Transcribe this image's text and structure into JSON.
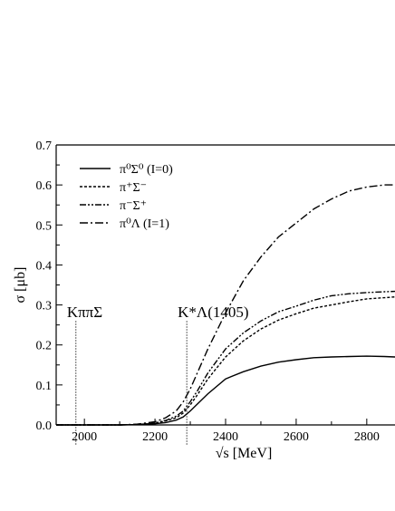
{
  "chart_data": {
    "type": "line",
    "xlabel": "√s [MeV]",
    "ylabel": "σ [μb]",
    "xlim": [
      1920,
      2880
    ],
    "ylim": [
      0.0,
      0.7
    ],
    "xticks": [
      2000,
      2200,
      2400,
      2600,
      2800
    ],
    "yticks": [
      0.0,
      0.1,
      0.2,
      0.3,
      0.4,
      0.5,
      0.6,
      0.7
    ],
    "xtick_labels": [
      "2000",
      "2200",
      "2400",
      "2600",
      "2800"
    ],
    "ytick_labels": [
      "0.0",
      "0.1",
      "0.2",
      "0.3",
      "0.4",
      "0.5",
      "0.6",
      "0.7"
    ],
    "grid": false,
    "legend_position": "top-left",
    "annotations": [
      {
        "text": "KππΣ",
        "x": 1976
      },
      {
        "text": "K*Λ(1405)",
        "x": 2290
      }
    ],
    "series": [
      {
        "name": "π⁰Σ⁰ (I=0)",
        "dash": "solid",
        "x": [
          1920,
          2000,
          2100,
          2150,
          2200,
          2230,
          2260,
          2280,
          2300,
          2320,
          2350,
          2400,
          2450,
          2500,
          2550,
          2600,
          2650,
          2700,
          2750,
          2800,
          2850,
          2880
        ],
        "y": [
          0.0,
          0.0,
          0.0,
          0.001,
          0.003,
          0.006,
          0.012,
          0.02,
          0.035,
          0.052,
          0.078,
          0.115,
          0.133,
          0.147,
          0.157,
          0.163,
          0.168,
          0.17,
          0.171,
          0.172,
          0.171,
          0.17
        ]
      },
      {
        "name": "π⁺Σ⁻",
        "dash": "dotted",
        "x": [
          1920,
          2000,
          2100,
          2150,
          2200,
          2230,
          2260,
          2280,
          2300,
          2320,
          2350,
          2400,
          2450,
          2500,
          2550,
          2600,
          2650,
          2700,
          2750,
          2800,
          2850,
          2880
        ],
        "y": [
          0.0,
          0.0,
          0.0,
          0.001,
          0.004,
          0.01,
          0.018,
          0.03,
          0.05,
          0.075,
          0.115,
          0.17,
          0.21,
          0.24,
          0.262,
          0.278,
          0.292,
          0.3,
          0.308,
          0.315,
          0.318,
          0.32
        ]
      },
      {
        "name": "π⁻Σ⁺",
        "dash": "dashdotdot",
        "x": [
          1920,
          2000,
          2100,
          2150,
          2200,
          2230,
          2260,
          2280,
          2300,
          2320,
          2350,
          2400,
          2450,
          2500,
          2550,
          2600,
          2650,
          2700,
          2750,
          2800,
          2850,
          2880
        ],
        "y": [
          0.0,
          0.0,
          0.0,
          0.001,
          0.005,
          0.011,
          0.022,
          0.035,
          0.058,
          0.085,
          0.13,
          0.19,
          0.23,
          0.26,
          0.283,
          0.297,
          0.312,
          0.323,
          0.328,
          0.331,
          0.333,
          0.334
        ]
      },
      {
        "name": "π⁰Λ (I=1)",
        "dash": "dashdot",
        "x": [
          1920,
          2000,
          2100,
          2150,
          2200,
          2230,
          2260,
          2280,
          2300,
          2320,
          2350,
          2400,
          2450,
          2500,
          2550,
          2600,
          2650,
          2700,
          2750,
          2800,
          2850,
          2880
        ],
        "y": [
          0.0,
          0.0,
          0.0,
          0.002,
          0.008,
          0.018,
          0.035,
          0.058,
          0.09,
          0.13,
          0.19,
          0.28,
          0.36,
          0.42,
          0.47,
          0.505,
          0.54,
          0.565,
          0.585,
          0.595,
          0.6,
          0.6
        ]
      }
    ]
  }
}
